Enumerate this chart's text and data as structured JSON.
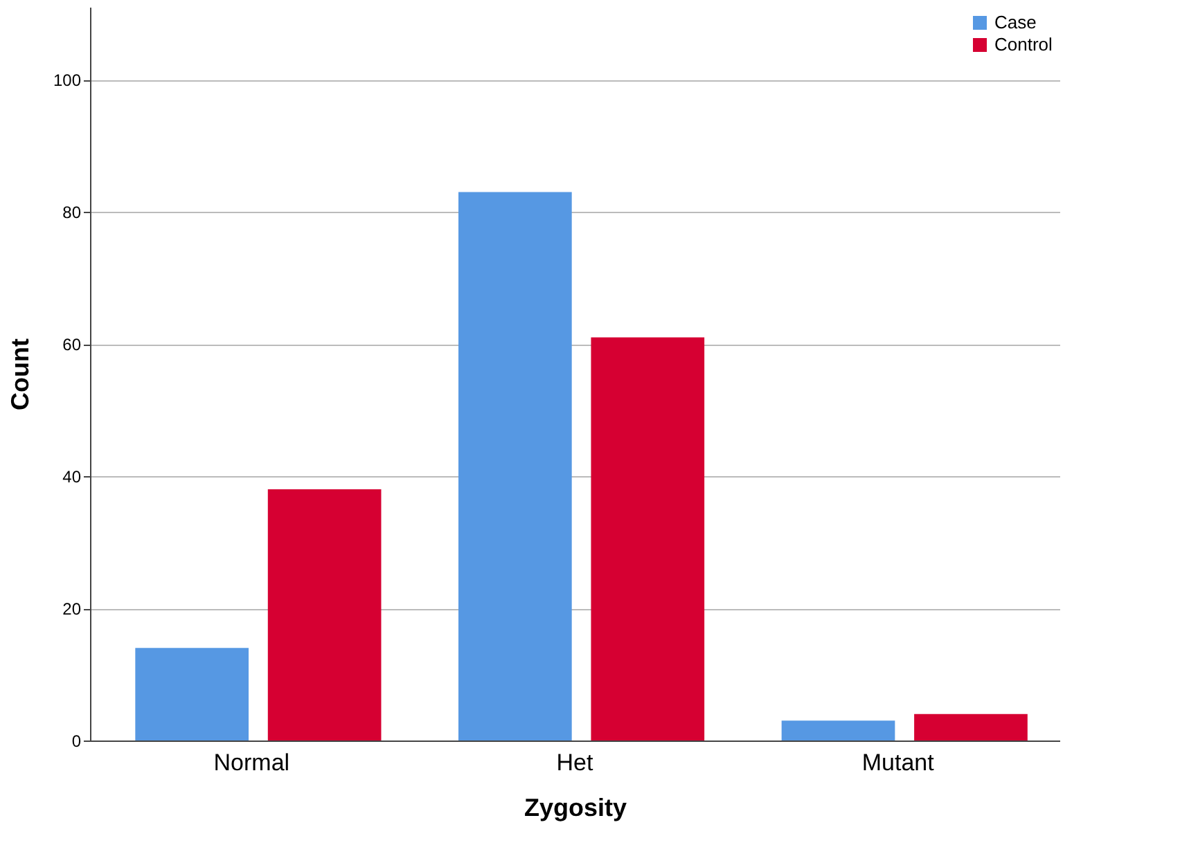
{
  "chart_data": {
    "type": "bar",
    "xlabel": "Zygosity",
    "ylabel": "Count",
    "categories": [
      "Normal",
      "Het",
      "Mutant"
    ],
    "series": [
      {
        "name": "Case",
        "color": "#5698e3",
        "values": [
          14,
          83,
          3
        ]
      },
      {
        "name": "Control",
        "color": "#d60032",
        "values": [
          38,
          61,
          4
        ]
      }
    ],
    "ylim": [
      0,
      111
    ],
    "yticks": [
      0,
      20,
      40,
      60,
      80,
      100
    ],
    "grid": "y",
    "legend": "top right"
  }
}
